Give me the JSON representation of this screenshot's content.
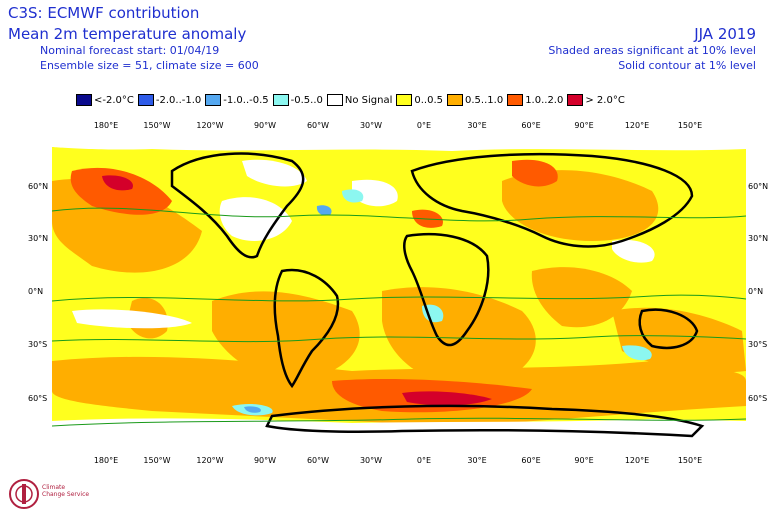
{
  "header": {
    "title1": "C3S: ECMWF contribution",
    "title2": "Mean 2m temperature anomaly",
    "line3": "Nominal forecast start: 01/04/19",
    "line4": "Ensemble size = 51, climate size = 600",
    "season": "JJA 2019",
    "note1": "Shaded areas significant at 10% level",
    "note2": "Solid contour at 1% level"
  },
  "legend": [
    {
      "label": "<-2.0°C",
      "color": "#0a0a8c"
    },
    {
      "label": "-2.0..-1.0",
      "color": "#2e5be8"
    },
    {
      "label": "-1.0..-0.5",
      "color": "#55a8f0"
    },
    {
      "label": "-0.5..0",
      "color": "#8cf7f0"
    },
    {
      "label": "No Signal",
      "color": "#ffffff"
    },
    {
      "label": "0..0.5",
      "color": "#ffff1e"
    },
    {
      "label": "0.5..1.0",
      "color": "#ffae00"
    },
    {
      "label": "1.0..2.0",
      "color": "#ff5a00"
    },
    {
      "label": "> 2.0°C",
      "color": "#d4002a"
    }
  ],
  "axes": {
    "lon_labels": [
      "180°E",
      "150°W",
      "120°W",
      "90°W",
      "60°W",
      "30°W",
      "0°E",
      "30°E",
      "60°E",
      "90°E",
      "120°E",
      "150°E"
    ],
    "lat_labels": [
      "60°N",
      "30°N",
      "0°N",
      "30°S",
      "60°S"
    ]
  },
  "logo": {
    "line1": "Climate",
    "line2": "Change Service"
  }
}
